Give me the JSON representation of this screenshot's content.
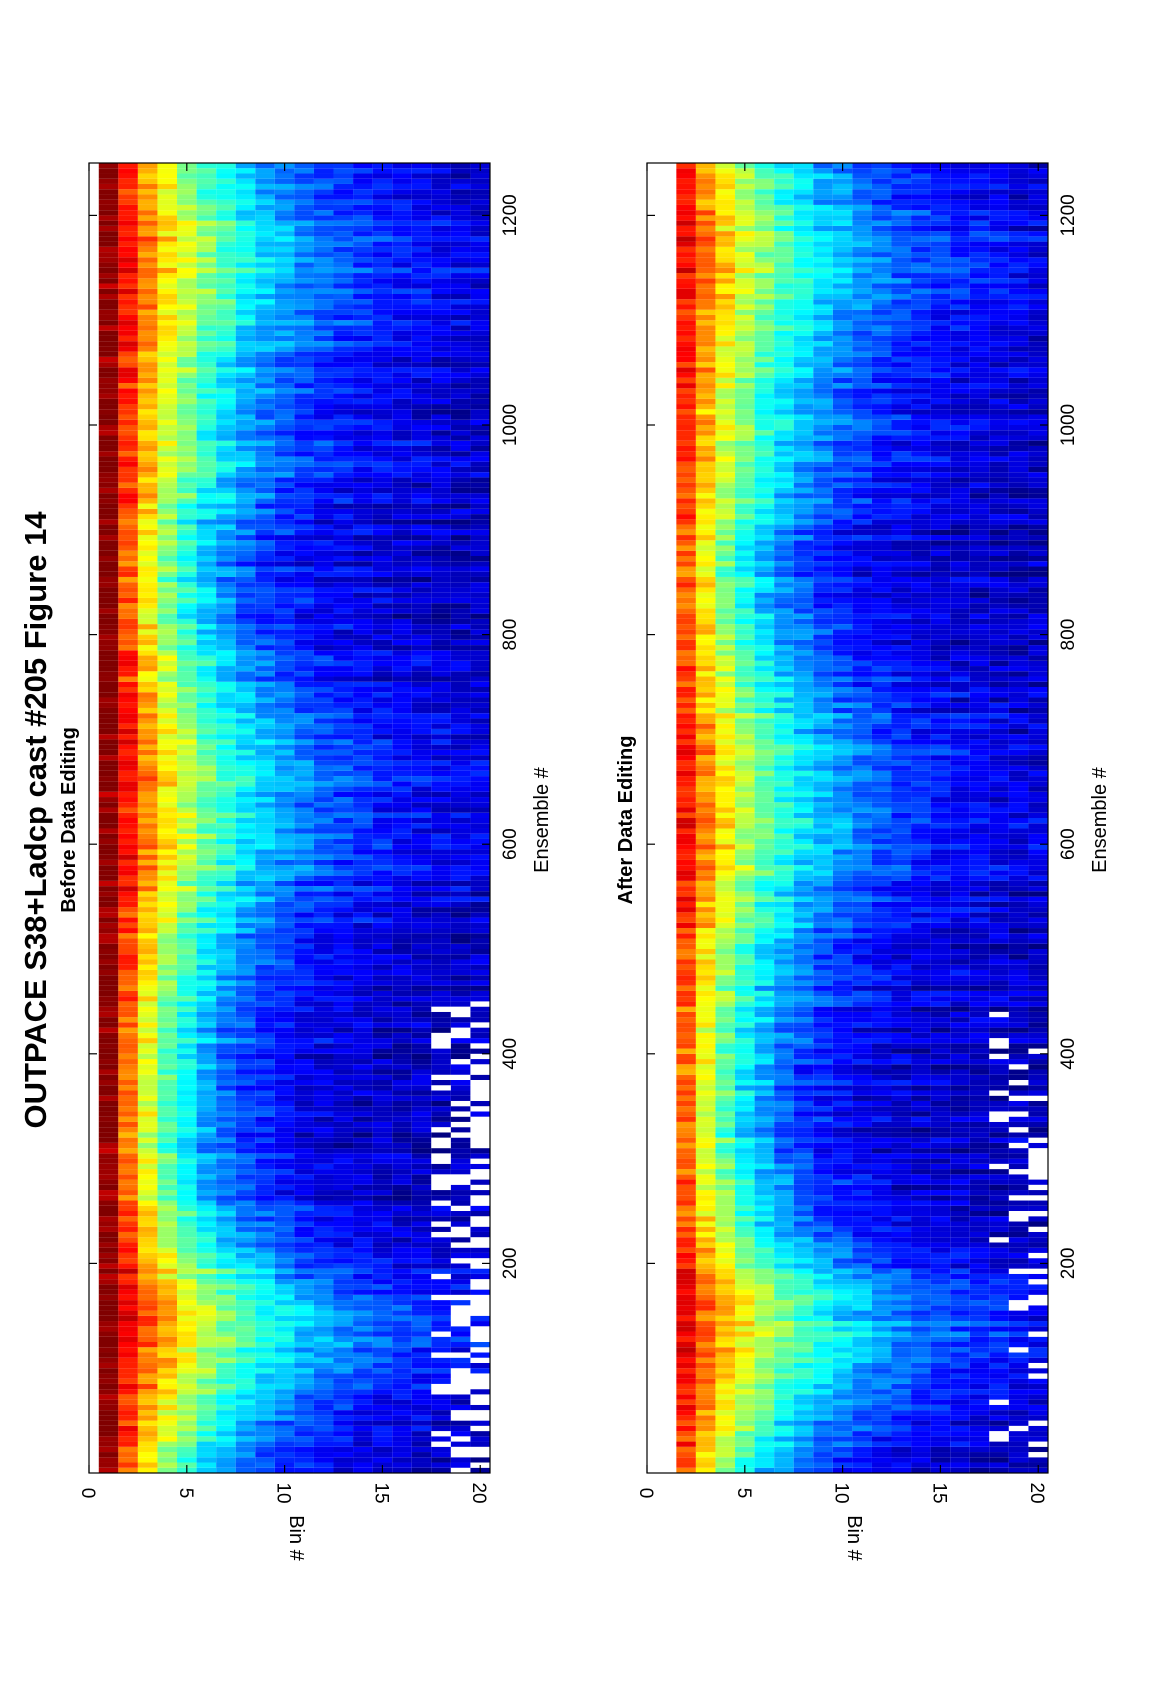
{
  "title": "OUTPACE S38+Ladcp cast #205  Figure 14",
  "chart_data": [
    {
      "type": "heatmap",
      "subtitle": "Before Data Editing",
      "xlabel": "Ensemble #",
      "ylabel": "Bin #",
      "xlim": [
        0,
        1250
      ],
      "ylim": [
        0,
        20.5
      ],
      "xticks": [
        200,
        400,
        600,
        800,
        1000,
        1200
      ],
      "yticks": [
        0,
        5,
        10,
        15,
        20
      ],
      "xtick_labels": [
        "200",
        "400",
        "600",
        "800",
        "1000",
        "1200"
      ],
      "ytick_labels": [
        "0",
        "5",
        "10",
        "15",
        "20"
      ],
      "bins": 20,
      "ensembles": 1250,
      "first_bin_blank": false,
      "colormap": "jet",
      "gaps_max_ensemble": 450,
      "gaps_density": 0.55
    },
    {
      "type": "heatmap",
      "subtitle": "After Data Editing",
      "xlabel": "Ensemble #",
      "ylabel": "Bin #",
      "xlim": [
        0,
        1250
      ],
      "ylim": [
        0,
        20.5
      ],
      "xticks": [
        200,
        400,
        600,
        800,
        1000,
        1200
      ],
      "yticks": [
        0,
        5,
        10,
        15,
        20
      ],
      "xtick_labels": [
        "200",
        "400",
        "600",
        "800",
        "1000",
        "1200"
      ],
      "ytick_labels": [
        "0",
        "5",
        "10",
        "15",
        "20"
      ],
      "bins": 20,
      "ensembles": 1250,
      "first_bin_blank": true,
      "colormap": "jet",
      "gaps_max_ensemble": 450,
      "gaps_density": 0.2
    }
  ]
}
